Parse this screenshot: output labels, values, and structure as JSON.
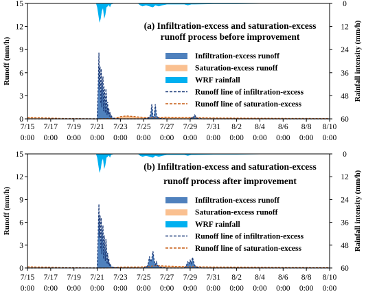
{
  "colors": {
    "infiltration_excess": "#4f81bd",
    "saturation_excess": "#fac090",
    "rainfall": "#00b0f0",
    "infil_line": "#1f3d7a",
    "sat_line": "#c55a11"
  },
  "chart_data": [
    {
      "type": "area",
      "title_line1": "(a) Infiltration-excess and saturation-excess",
      "title_line2": "runoff process before improvement",
      "ylabel": "Runoff (mm/h)",
      "y2label": "Rainfall intensity (mm/h)",
      "ylim": [
        0,
        15
      ],
      "yticks": [
        "0",
        "3",
        "6",
        "9",
        "12",
        "15"
      ],
      "y2lim": [
        0,
        60
      ],
      "y2_inverted": true,
      "y2ticks": [
        "0",
        "12",
        "24",
        "36",
        "48",
        "60"
      ],
      "xlim": [
        0,
        26
      ],
      "xtick_dates": [
        "7/15",
        "7/17",
        "7/19",
        "7/21",
        "7/23",
        "7/25",
        "7/27",
        "7/29",
        "7/31",
        "8/2",
        "8/4",
        "8/6",
        "8/8",
        "8/10"
      ],
      "xtick_time": "0:00",
      "legend": [
        "Infiltration-excess runoff",
        "Saturation-excess runoff",
        "WRF rainfall",
        "Runoff line of infiltration-excess",
        "Runoff line of saturation-excess"
      ],
      "legend_position": "right",
      "series": [
        {
          "name": "Infiltration-excess runoff",
          "kind": "area",
          "axis": "left",
          "x": [
            0,
            6,
            6.05,
            6.1,
            6.15,
            6.2,
            6.25,
            6.3,
            6.35,
            6.4,
            6.45,
            6.5,
            6.55,
            6.6,
            6.65,
            6.7,
            6.75,
            6.8,
            6.85,
            6.9,
            6.95,
            7.0,
            7.05,
            7.1,
            7.15,
            7.2,
            7.3,
            7.5,
            8,
            10,
            10.4,
            10.5,
            10.6,
            10.7,
            10.8,
            10.9,
            11.0,
            11.1,
            11.2,
            11.4,
            12,
            13,
            14,
            14.1,
            14.2,
            14.3,
            14.4,
            14.5,
            14.6,
            14.7,
            15,
            26
          ],
          "y": [
            0,
            0,
            2.5,
            5.2,
            8.6,
            3.8,
            6.8,
            2.0,
            6.5,
            1.5,
            4.5,
            5.5,
            1.0,
            4.2,
            3.2,
            0.8,
            3.9,
            2.8,
            0.5,
            2.2,
            0.6,
            1.4,
            0.3,
            0.9,
            0.2,
            0.5,
            0.1,
            0.05,
            0,
            0,
            0.1,
            0.3,
            0.5,
            1.9,
            0.3,
            0.2,
            1.9,
            0.4,
            0.2,
            0.05,
            0,
            0,
            0,
            0.1,
            0.3,
            0.2,
            0.5,
            0.2,
            0.1,
            0.05,
            0,
            0
          ]
        },
        {
          "name": "Saturation-excess runoff",
          "kind": "area",
          "axis": "left",
          "x": [
            0,
            3,
            6,
            6.8,
            7.2,
            7.5,
            8,
            8.5,
            9,
            9.5,
            10,
            11,
            12,
            13,
            14,
            15,
            16,
            18,
            20,
            22,
            24,
            26
          ],
          "y": [
            0.2,
            0.05,
            0,
            0.02,
            0.05,
            0.1,
            0.28,
            0.38,
            0.32,
            0.25,
            0.2,
            0.2,
            0.22,
            0.2,
            0.2,
            0.15,
            0.12,
            0.1,
            0.08,
            0.06,
            0.05,
            0.04
          ]
        },
        {
          "name": "WRF rainfall",
          "kind": "area",
          "axis": "right",
          "x": [
            0,
            5.9,
            6.0,
            6.1,
            6.2,
            6.3,
            6.4,
            6.5,
            6.6,
            6.7,
            6.8,
            6.9,
            7.0,
            7.1,
            7.2,
            7.3,
            7.5,
            9.5,
            9.7,
            9.9,
            10.2,
            10.5,
            10.8,
            11.0,
            11.3,
            11.6,
            12.0,
            13.5,
            13.8,
            14.1,
            14.4,
            16,
            18,
            20,
            22,
            24,
            26
          ],
          "y": [
            0,
            0,
            2,
            6,
            10,
            8,
            4,
            2.5,
            8,
            6,
            2,
            1.5,
            0.8,
            2,
            0.5,
            0.3,
            0,
            0,
            1,
            1.5,
            1,
            1.5,
            2,
            1,
            1.5,
            1,
            0.5,
            0.5,
            1,
            0.5,
            0.5,
            0.3,
            0.3,
            0.2,
            0.2,
            0.1,
            0
          ]
        },
        {
          "name": "Runoff line of infiltration-excess",
          "kind": "line",
          "dash": "dashed",
          "axis": "left",
          "x": [
            0,
            6,
            6.05,
            6.1,
            6.15,
            6.2,
            6.25,
            6.3,
            6.35,
            6.4,
            6.45,
            6.5,
            6.55,
            6.6,
            6.65,
            6.7,
            6.75,
            6.8,
            6.85,
            6.9,
            6.95,
            7.0,
            7.05,
            7.1,
            7.15,
            7.2,
            7.3,
            7.5,
            8,
            10,
            10.4,
            10.5,
            10.6,
            10.7,
            10.8,
            10.9,
            11.0,
            11.1,
            11.2,
            11.4,
            12,
            13,
            14,
            14.1,
            14.2,
            14.3,
            14.4,
            14.5,
            14.6,
            14.7,
            15,
            26
          ],
          "y": [
            0,
            0,
            2.5,
            5.2,
            8.6,
            3.8,
            6.8,
            2.0,
            6.5,
            1.5,
            4.5,
            5.5,
            1.0,
            4.2,
            3.2,
            0.8,
            3.9,
            2.8,
            0.5,
            2.2,
            0.6,
            1.4,
            0.3,
            0.9,
            0.2,
            0.5,
            0.1,
            0.05,
            0,
            0,
            0.1,
            0.3,
            0.5,
            1.9,
            0.3,
            0.2,
            1.9,
            0.4,
            0.2,
            0.05,
            0,
            0,
            0,
            0.1,
            0.3,
            0.2,
            0.5,
            0.2,
            0.1,
            0.05,
            0,
            0
          ]
        },
        {
          "name": "Runoff line of saturation-excess",
          "kind": "line",
          "dash": "dashed",
          "axis": "left",
          "x": [
            0,
            3,
            6,
            6.8,
            7.2,
            7.5,
            8,
            8.5,
            9,
            9.5,
            10,
            11,
            12,
            13,
            14,
            15,
            16,
            18,
            20,
            22,
            24,
            26
          ],
          "y": [
            0.2,
            0.05,
            0,
            0.02,
            0.05,
            0.1,
            0.28,
            0.38,
            0.32,
            0.25,
            0.2,
            0.2,
            0.22,
            0.2,
            0.2,
            0.15,
            0.12,
            0.1,
            0.08,
            0.06,
            0.05,
            0.04
          ]
        }
      ]
    },
    {
      "type": "area",
      "title_line1": "(b) Infiltration-excess and saturation-excess",
      "title_line2": "runoff process after improvement",
      "ylabel": "Runoff (mm/h)",
      "y2label": "Rainfall intensity (mm/h)",
      "ylim": [
        0,
        15
      ],
      "yticks": [
        "0",
        "3",
        "6",
        "9",
        "12",
        "15"
      ],
      "y2lim": [
        0,
        60
      ],
      "y2_inverted": true,
      "y2ticks": [
        "0",
        "12",
        "24",
        "36",
        "48",
        "60"
      ],
      "xlim": [
        0,
        26
      ],
      "xtick_dates": [
        "7/15",
        "7/17",
        "7/19",
        "7/21",
        "7/23",
        "7/25",
        "7/27",
        "7/29",
        "7/31",
        "8/2",
        "8/4",
        "8/6",
        "8/8",
        "8/10"
      ],
      "xtick_time": "0:00",
      "legend": [
        "Infiltration-excess runoff",
        "Saturation-excess runoff",
        "WRF rainfall",
        "Runoff line of infiltration-excess",
        "Runoff line of saturation-excess"
      ],
      "legend_position": "right",
      "series": [
        {
          "name": "Infiltration-excess runoff",
          "kind": "area",
          "axis": "left",
          "x": [
            0,
            6,
            6.05,
            6.1,
            6.15,
            6.2,
            6.25,
            6.3,
            6.35,
            6.4,
            6.45,
            6.5,
            6.55,
            6.6,
            6.65,
            6.7,
            6.75,
            6.8,
            6.85,
            6.9,
            6.95,
            7.0,
            7.05,
            7.1,
            7.2,
            7.4,
            8,
            10,
            10.3,
            10.4,
            10.5,
            10.6,
            10.7,
            10.8,
            10.9,
            11.0,
            11.1,
            11.2,
            11.4,
            12,
            13.5,
            13.7,
            13.8,
            13.9,
            14.0,
            14.1,
            14.2,
            14.3,
            14.4,
            14.6,
            15,
            26
          ],
          "y": [
            0,
            0,
            2.5,
            5.5,
            8.4,
            4.0,
            6.9,
            2.5,
            6.6,
            1.8,
            4.6,
            5.6,
            1.2,
            4.3,
            3.4,
            0.9,
            3.8,
            2.6,
            0.5,
            2.0,
            0.5,
            1.2,
            0.3,
            0.6,
            0.2,
            0.05,
            0,
            0,
            0.2,
            0.6,
            1.5,
            0.8,
            1.2,
            2.2,
            1.0,
            0.4,
            0.8,
            0.3,
            0.1,
            0,
            0,
            0.4,
            0.8,
            0.5,
            1.0,
            0.6,
            1.4,
            0.8,
            0.3,
            0.1,
            0,
            0
          ]
        },
        {
          "name": "Saturation-excess runoff",
          "kind": "area",
          "axis": "left",
          "x": [
            0,
            3,
            6,
            6.8,
            7.2,
            7.5,
            8,
            8.5,
            9,
            9.5,
            10,
            10.5,
            11,
            11.5,
            12,
            13,
            14,
            15,
            16,
            18,
            20,
            22,
            24,
            26
          ],
          "y": [
            0.15,
            0.05,
            0,
            0,
            0.02,
            0.05,
            0.1,
            0.12,
            0.12,
            0.12,
            0.15,
            0.2,
            0.3,
            0.28,
            0.25,
            0.2,
            0.18,
            0.15,
            0.12,
            0.1,
            0.08,
            0.06,
            0.05,
            0.04
          ]
        },
        {
          "name": "WRF rainfall",
          "kind": "area",
          "axis": "right",
          "x": [
            0,
            5.9,
            6.0,
            6.1,
            6.2,
            6.3,
            6.4,
            6.5,
            6.6,
            6.7,
            6.8,
            6.9,
            7.0,
            7.1,
            7.2,
            7.3,
            7.5,
            9.5,
            9.7,
            9.9,
            10.2,
            10.5,
            10.8,
            11.0,
            11.3,
            11.6,
            12.0,
            13.5,
            13.8,
            14.1,
            14.4,
            16,
            18,
            20,
            22,
            24,
            26
          ],
          "y": [
            0,
            0,
            2,
            6,
            10,
            8,
            4,
            2.5,
            8,
            6,
            2,
            1.5,
            0.8,
            2,
            0.5,
            0.3,
            0,
            0,
            1,
            1.5,
            1,
            1.5,
            2,
            1,
            1.5,
            1,
            0.5,
            0.5,
            1,
            0.5,
            0.5,
            0.3,
            0.3,
            0.2,
            0.2,
            0.1,
            0
          ]
        },
        {
          "name": "Runoff line of infiltration-excess",
          "kind": "line",
          "dash": "dashed",
          "axis": "left",
          "x": [
            0,
            6,
            6.05,
            6.1,
            6.15,
            6.2,
            6.25,
            6.3,
            6.35,
            6.4,
            6.45,
            6.5,
            6.55,
            6.6,
            6.65,
            6.7,
            6.75,
            6.8,
            6.85,
            6.9,
            6.95,
            7.0,
            7.05,
            7.1,
            7.2,
            7.4,
            8,
            10,
            10.3,
            10.4,
            10.5,
            10.6,
            10.7,
            10.8,
            10.9,
            11.0,
            11.1,
            11.2,
            11.4,
            12,
            13.5,
            13.7,
            13.8,
            13.9,
            14.0,
            14.1,
            14.2,
            14.3,
            14.4,
            14.6,
            15,
            26
          ],
          "y": [
            0,
            0,
            2.5,
            5.5,
            8.4,
            4.0,
            6.9,
            2.5,
            6.6,
            1.8,
            4.6,
            5.6,
            1.2,
            4.3,
            3.4,
            0.9,
            3.8,
            2.6,
            0.5,
            2.0,
            0.5,
            1.2,
            0.3,
            0.6,
            0.2,
            0.05,
            0,
            0,
            0.2,
            0.6,
            1.5,
            0.8,
            1.2,
            2.2,
            1.0,
            0.4,
            0.8,
            0.3,
            0.1,
            0,
            0,
            0.4,
            0.8,
            0.5,
            1.0,
            0.6,
            1.4,
            0.8,
            0.3,
            0.1,
            0,
            0
          ]
        },
        {
          "name": "Runoff line of saturation-excess",
          "kind": "line",
          "dash": "dashed",
          "axis": "left",
          "x": [
            0,
            3,
            6,
            6.8,
            7.2,
            7.5,
            8,
            8.5,
            9,
            9.5,
            10,
            10.5,
            11,
            11.5,
            12,
            13,
            14,
            15,
            16,
            18,
            20,
            22,
            24,
            26
          ],
          "y": [
            0.15,
            0.05,
            0,
            0,
            0.02,
            0.05,
            0.1,
            0.12,
            0.12,
            0.12,
            0.15,
            0.2,
            0.3,
            0.28,
            0.25,
            0.2,
            0.18,
            0.15,
            0.12,
            0.1,
            0.08,
            0.06,
            0.05,
            0.04
          ]
        }
      ]
    }
  ]
}
